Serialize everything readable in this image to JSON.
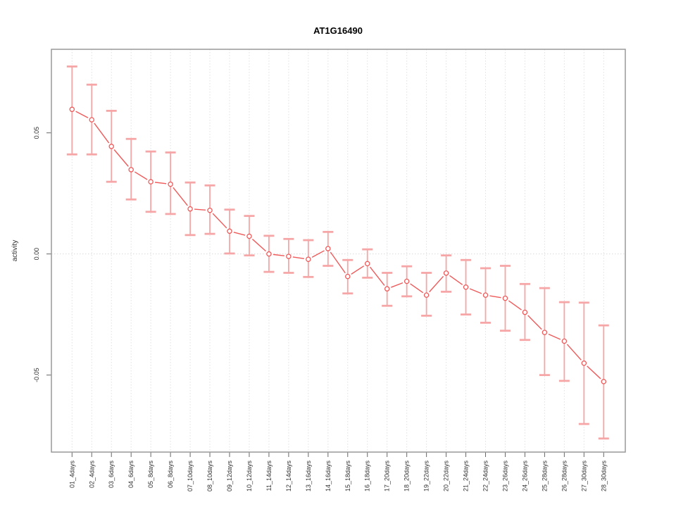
{
  "title": "AT1G16490",
  "colors": {
    "line": "#ef5a5a",
    "marker_stroke": "#ef5a5a",
    "marker_fill": "#ffffff",
    "error_bar": "#f6a6a6",
    "gridline": "#e0e0e0",
    "zero_line": "#d9d9d9",
    "box_border": "#999999",
    "tick": "#666666",
    "tick_label": "#333333",
    "title_color": "#000000"
  },
  "chart_data": {
    "type": "line",
    "title": "AT1G16490",
    "xlabel": "",
    "ylabel": "activity",
    "legend_position": "none",
    "grid": "vertical dotted gridlines at each category; dotted horizontal line at y=0",
    "ylim": [
      -0.0818,
      0.0845
    ],
    "yticks": [
      0.05,
      0,
      -0.05
    ],
    "ytick_labels": [
      "0.05",
      "0.00",
      "-0.05"
    ],
    "categories": [
      "01_4days",
      "02_4days",
      "03_6days",
      "04_6days",
      "05_8days",
      "06_8days",
      "07_10days",
      "08_10days",
      "09_12days",
      "10_12days",
      "11_14days",
      "12_14days",
      "13_16days",
      "14_16days",
      "15_18days",
      "16_18days",
      "17_20days",
      "18_20days",
      "19_22days",
      "20_22days",
      "21_24days",
      "22_24days",
      "23_26days",
      "24_26days",
      "25_28days",
      "26_28days",
      "27_30days",
      "28_30days"
    ],
    "series": [
      {
        "name": "activity",
        "marker": "open-circle",
        "values": [
          0.0597,
          0.0554,
          0.0444,
          0.0348,
          0.0298,
          0.0288,
          0.0186,
          0.018,
          0.0094,
          0.0073,
          0.0,
          -0.001,
          -0.0022,
          0.0022,
          -0.0093,
          -0.004,
          -0.0144,
          -0.0113,
          -0.017,
          -0.0079,
          -0.0137,
          -0.017,
          -0.0183,
          -0.0241,
          -0.0324,
          -0.036,
          -0.0451,
          -0.0527
        ],
        "lower": [
          0.0411,
          0.0411,
          0.0298,
          0.0225,
          0.0174,
          0.0165,
          0.0078,
          0.0083,
          0.0002,
          -0.0006,
          -0.0074,
          -0.0078,
          -0.0095,
          -0.0049,
          -0.0163,
          -0.0098,
          -0.0214,
          -0.0175,
          -0.0255,
          -0.0156,
          -0.025,
          -0.0284,
          -0.0317,
          -0.0355,
          -0.05,
          -0.0524,
          -0.0702,
          -0.0762
        ],
        "upper": [
          0.0774,
          0.0699,
          0.0591,
          0.0475,
          0.0423,
          0.0419,
          0.0295,
          0.0283,
          0.0183,
          0.0157,
          0.0075,
          0.0062,
          0.0057,
          0.0091,
          -0.0025,
          0.0019,
          -0.0078,
          -0.0051,
          -0.0078,
          -0.0006,
          -0.0025,
          -0.0059,
          -0.0049,
          -0.0124,
          -0.0141,
          -0.0199,
          -0.0201,
          -0.0295
        ]
      }
    ]
  }
}
